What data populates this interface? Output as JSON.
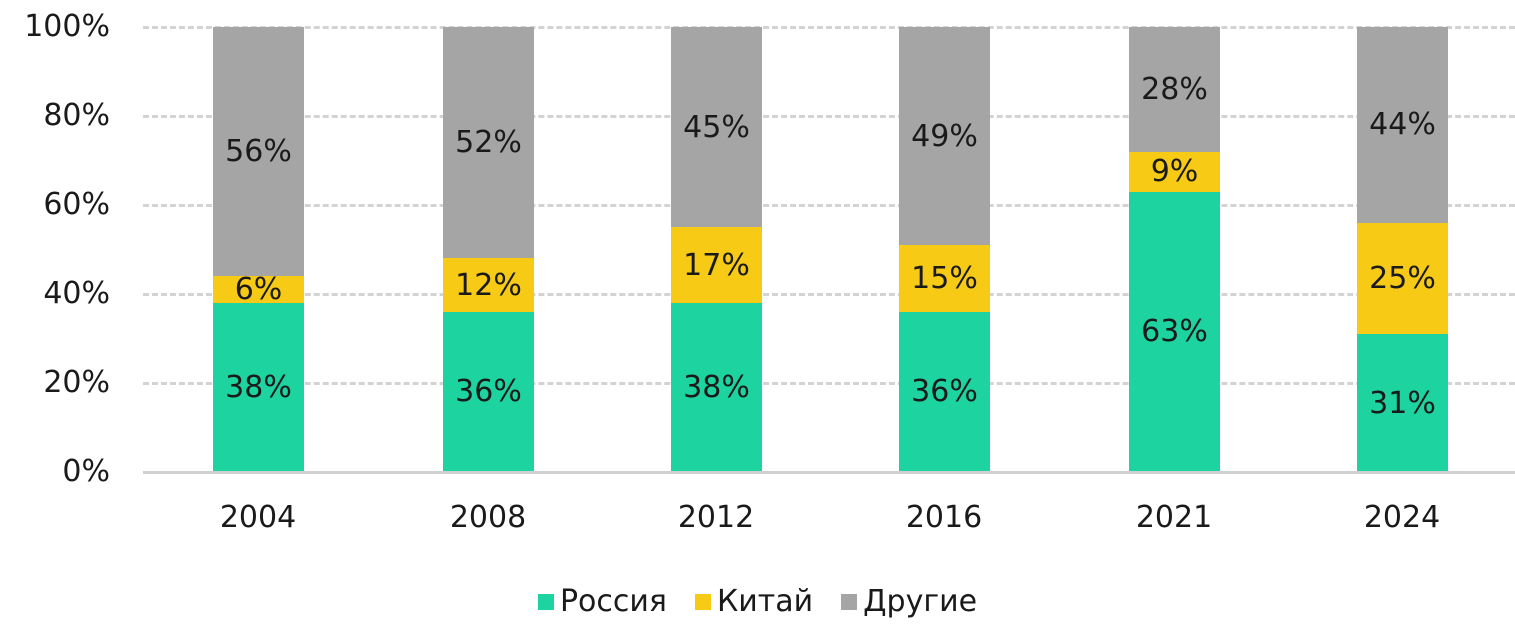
{
  "chart_data": {
    "type": "bar",
    "stacked": true,
    "title": "",
    "xlabel": "",
    "ylabel": "",
    "categories": [
      "2004",
      "2008",
      "2012",
      "2016",
      "2021",
      "2024"
    ],
    "series": [
      {
        "name": "Россия",
        "color": "#1dd39f",
        "values": [
          38,
          36,
          38,
          36,
          63,
          31
        ]
      },
      {
        "name": "Китай",
        "color": "#f7cb15",
        "values": [
          6,
          12,
          17,
          15,
          9,
          25
        ]
      },
      {
        "name": "Другие",
        "color": "#a5a5a5",
        "values": [
          56,
          52,
          45,
          49,
          28,
          44
        ]
      }
    ],
    "data_labels": {
      "Россия": [
        "38%",
        "36%",
        "38%",
        "36%",
        "63%",
        "31%"
      ],
      "Китай": [
        "6%",
        "12%",
        "17%",
        "15%",
        "9%",
        "25%"
      ],
      "Другие": [
        "56%",
        "52%",
        "45%",
        "49%",
        "28%",
        "44%"
      ]
    },
    "yticks": [
      "0%",
      "20%",
      "40%",
      "60%",
      "80%",
      "100%"
    ],
    "ylim": [
      0,
      100
    ],
    "grid": "horizontal dashed",
    "legend_position": "bottom"
  }
}
